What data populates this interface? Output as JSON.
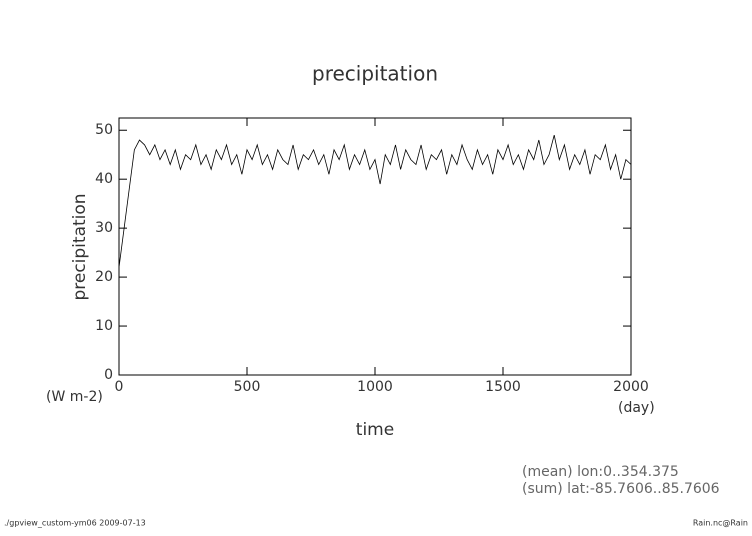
{
  "chart_data": {
    "type": "line",
    "title": "precipitation",
    "y_label": "precipitation",
    "x_label": "time",
    "y_unit": "(W m-2)",
    "x_unit": "(day)",
    "annotations": [
      "(mean) lon:0..354.375",
      "(sum) lat:-85.7606..85.7606"
    ],
    "footer_left": "./gpview_custom-ym06  2009-07-13",
    "footer_right": "Rain.nc@Rain",
    "xlim": [
      0,
      2000
    ],
    "xticks": [
      0,
      500,
      1000,
      1500,
      2000
    ],
    "ylim": [
      0,
      52.5
    ],
    "yticks": [
      0,
      10,
      20,
      30,
      40,
      50
    ],
    "grid": false,
    "x": [
      0,
      20,
      40,
      60,
      80,
      100,
      120,
      140,
      160,
      180,
      200,
      220,
      240,
      260,
      280,
      300,
      320,
      340,
      360,
      380,
      400,
      420,
      440,
      460,
      480,
      500,
      520,
      540,
      560,
      580,
      600,
      620,
      640,
      660,
      680,
      700,
      720,
      740,
      760,
      780,
      800,
      820,
      840,
      860,
      880,
      900,
      920,
      940,
      960,
      980,
      1000,
      1020,
      1040,
      1060,
      1080,
      1100,
      1120,
      1140,
      1160,
      1180,
      1200,
      1220,
      1240,
      1260,
      1280,
      1300,
      1320,
      1340,
      1360,
      1380,
      1400,
      1420,
      1440,
      1460,
      1480,
      1500,
      1520,
      1540,
      1560,
      1580,
      1600,
      1620,
      1640,
      1660,
      1680,
      1700,
      1720,
      1740,
      1760,
      1780,
      1800,
      1820,
      1840,
      1860,
      1880,
      1900,
      1920,
      1940,
      1960,
      1980,
      2000
    ],
    "series": [
      {
        "color": "#000000",
        "values": [
          22,
          30,
          38,
          46,
          48,
          47,
          45,
          47,
          44,
          46,
          43,
          46,
          42,
          45,
          44,
          47,
          43,
          45,
          42,
          46,
          44,
          47,
          43,
          45,
          41,
          46,
          44,
          47,
          43,
          45,
          42,
          46,
          44,
          43,
          47,
          42,
          45,
          44,
          46,
          43,
          45,
          41,
          46,
          44,
          47,
          42,
          45,
          43,
          46,
          42,
          44,
          39,
          45,
          43,
          47,
          42,
          46,
          44,
          43,
          47,
          42,
          45,
          44,
          46,
          41,
          45,
          43,
          47,
          44,
          42,
          46,
          43,
          45,
          41,
          46,
          44,
          47,
          43,
          45,
          42,
          46,
          44,
          48,
          43,
          45,
          49,
          44,
          47,
          42,
          45,
          43,
          46,
          41,
          45,
          44,
          47,
          42,
          45,
          40,
          44,
          43
        ]
      }
    ]
  }
}
